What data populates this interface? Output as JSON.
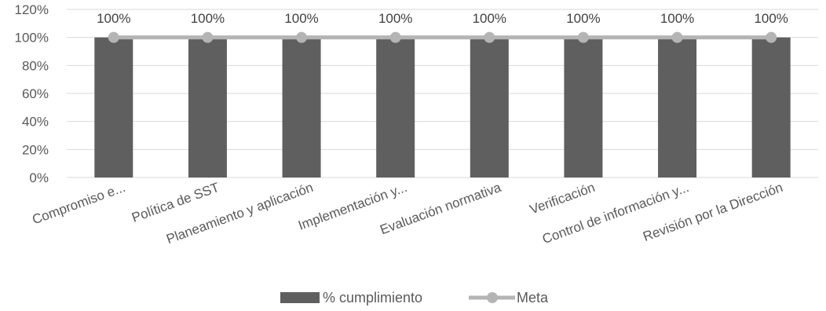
{
  "chart_data": {
    "type": "bar",
    "categories": [
      "Compromiso e...",
      "Política de SST",
      "Planeamiento y aplicación",
      "Implementación y...",
      "Evaluación normativa",
      "Verificación",
      "Control de información y...",
      "Revisión por la Dirección"
    ],
    "series": [
      {
        "name": "% cumplimiento",
        "type": "bar",
        "values": [
          100,
          100,
          100,
          100,
          100,
          100,
          100,
          100
        ],
        "color": "#5f5f5f"
      },
      {
        "name": "Meta",
        "type": "line",
        "values": [
          100,
          100,
          100,
          100,
          100,
          100,
          100,
          100
        ],
        "color": "#b4b4b4"
      }
    ],
    "data_labels": [
      "100%",
      "100%",
      "100%",
      "100%",
      "100%",
      "100%",
      "100%",
      "100%"
    ],
    "y_ticks": [
      "0%",
      "20%",
      "40%",
      "60%",
      "80%",
      "100%",
      "120%"
    ],
    "ylim": [
      0,
      120
    ],
    "y_step": 20,
    "grid": true,
    "legend": "bottom",
    "title": "",
    "xlabel": "",
    "ylabel": ""
  }
}
